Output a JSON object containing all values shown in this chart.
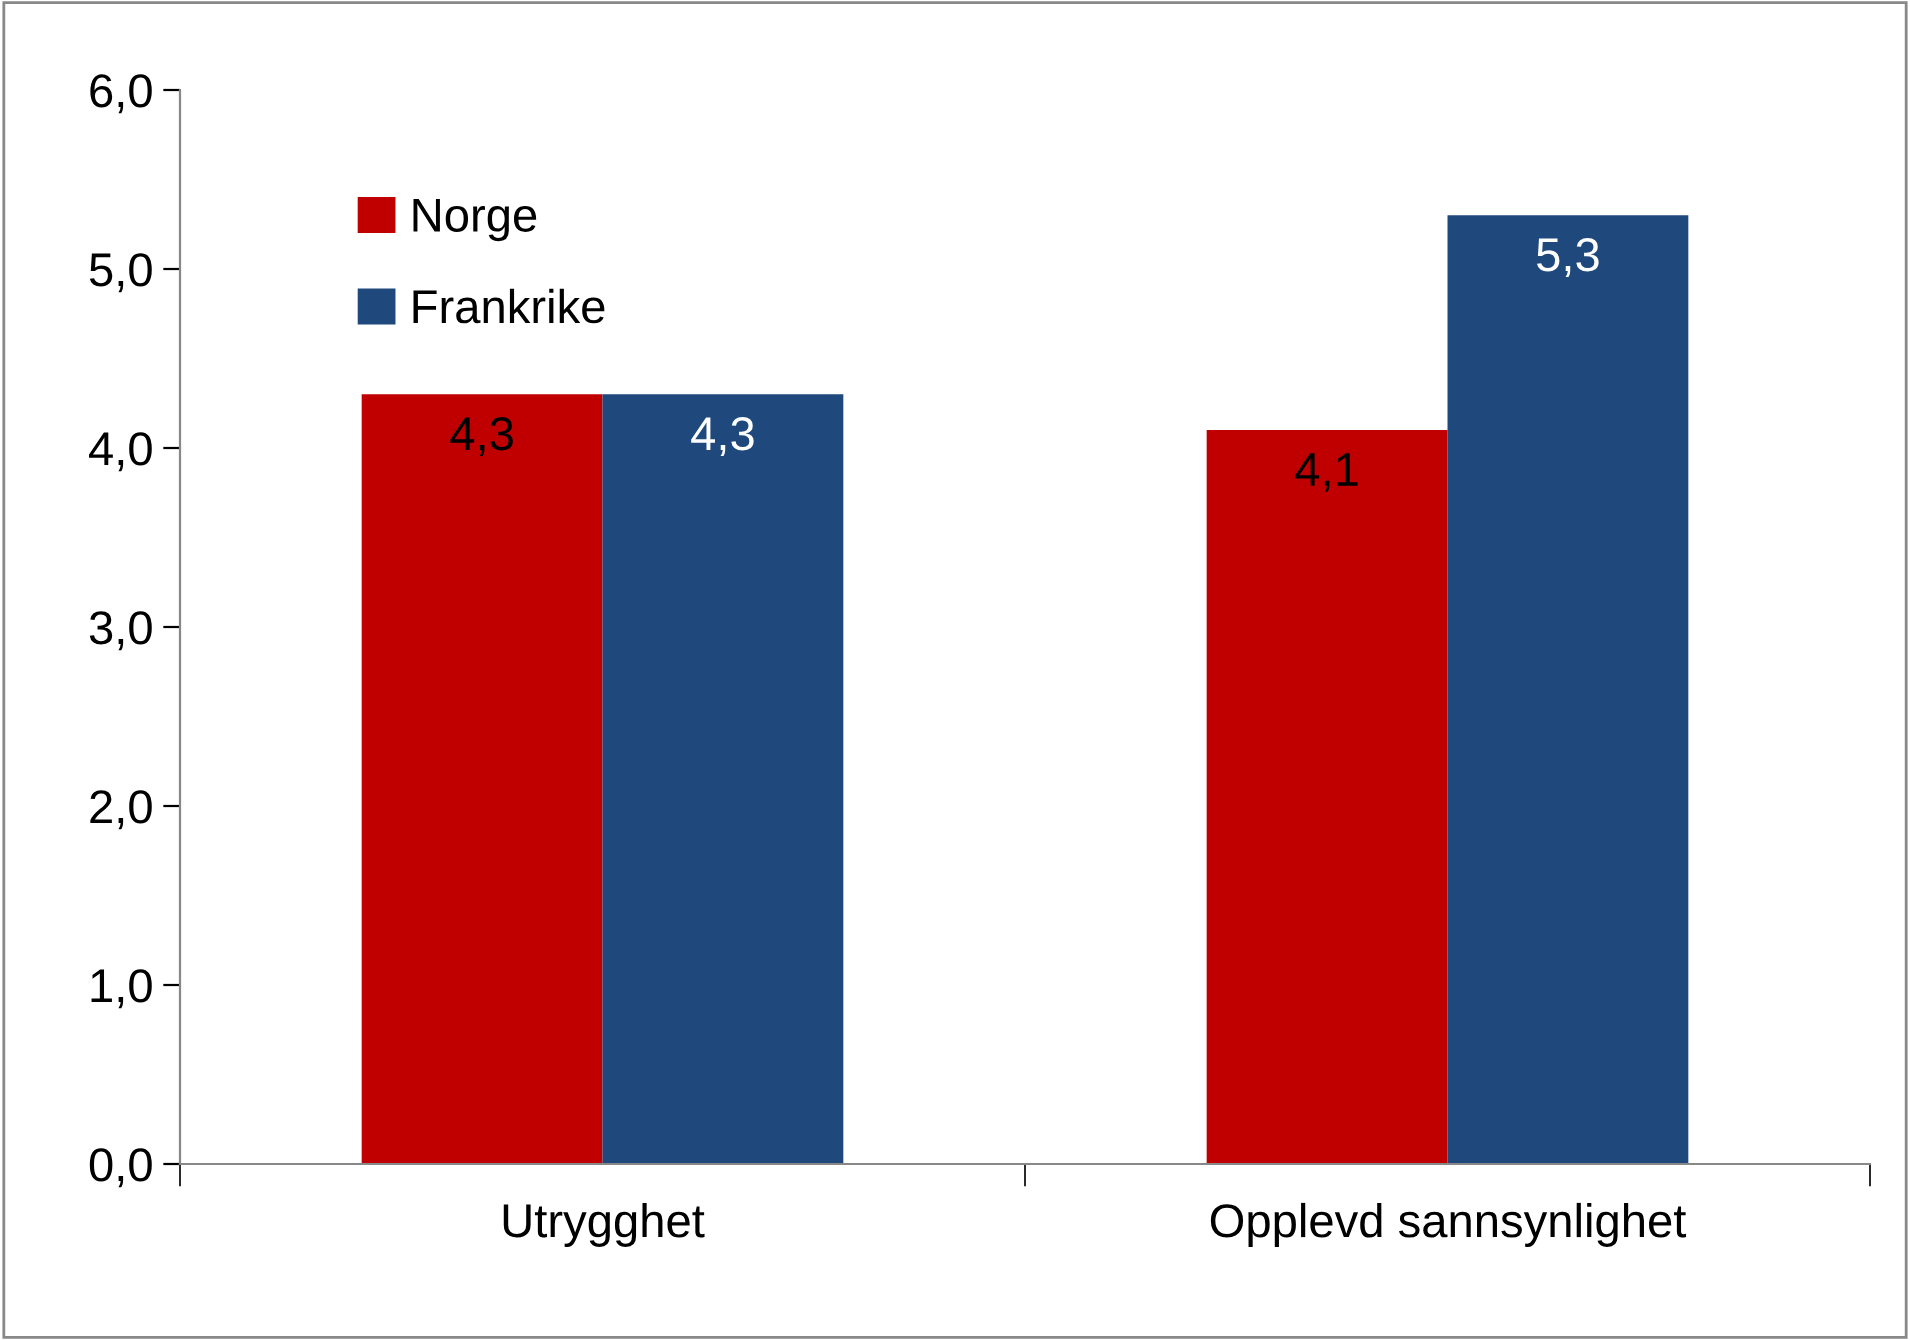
{
  "chart_data": {
    "type": "bar",
    "categories": [
      "Utrygghet",
      "Opplevd sannsynlighet"
    ],
    "series": [
      {
        "name": "Norge",
        "color": "#c00000",
        "values": [
          4.3,
          4.1
        ],
        "value_labels": [
          "4,3",
          "4,1"
        ]
      },
      {
        "name": "Frankrike",
        "color": "#1f497d",
        "values": [
          4.3,
          5.3
        ],
        "value_labels": [
          "4,3",
          "5,3"
        ]
      }
    ],
    "ylim": [
      0,
      6
    ],
    "yticks": [
      {
        "value": 0,
        "label": "0,0"
      },
      {
        "value": 1,
        "label": "1,0"
      },
      {
        "value": 2,
        "label": "2,0"
      },
      {
        "value": 3,
        "label": "3,0"
      },
      {
        "value": 4,
        "label": "4,0"
      },
      {
        "value": 5,
        "label": "5,0"
      },
      {
        "value": 6,
        "label": "6,0"
      }
    ],
    "grid": false,
    "legend": "top left"
  }
}
